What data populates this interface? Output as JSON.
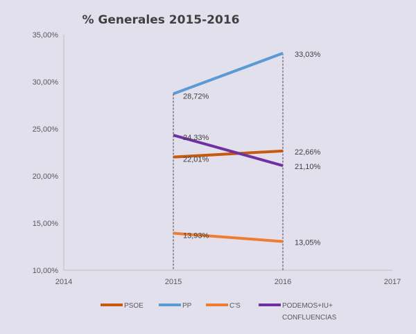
{
  "chart_data": {
    "type": "line",
    "title": "% Generales 2015-2016",
    "x": [
      2015,
      2016
    ],
    "xlim": [
      2014,
      2017
    ],
    "xticks": [
      "2014",
      "2015",
      "2016",
      "2017"
    ],
    "ylim": [
      10,
      35
    ],
    "yticks": [
      "10,00%",
      "15,00%",
      "20,00%",
      "25,00%",
      "30,00%",
      "35,00%"
    ],
    "grid": false,
    "legend_position": "bottom",
    "series": [
      {
        "name": "PSOE",
        "values": [
          22.01,
          22.66
        ],
        "labels": [
          "22,01%",
          "22,66%"
        ],
        "color": "#c55a11"
      },
      {
        "name": "PP",
        "values": [
          28.72,
          33.03
        ],
        "labels": [
          "28,72%",
          "33,03%"
        ],
        "color": "#5b9bd5"
      },
      {
        "name": "C'S",
        "values": [
          13.93,
          13.05
        ],
        "labels": [
          "13,93%",
          "13,05%"
        ],
        "color": "#ed7d31"
      },
      {
        "name": "PODEMOS+IU+ CONFLUENCIAS",
        "values": [
          24.33,
          21.1
        ],
        "labels": [
          "24,33%",
          "21,10%"
        ],
        "color": "#7030a0"
      }
    ]
  }
}
